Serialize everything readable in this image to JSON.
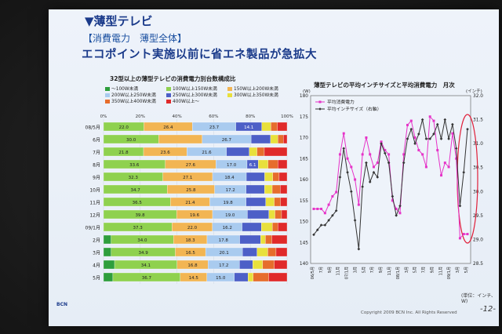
{
  "header": {
    "title": "▼薄型テレビ",
    "subtitle": "【消費電力　薄型全体】",
    "headline": "エコポイント実施以前に省エネ製品が急拡大"
  },
  "footer": {
    "copyright": "Copyright 2009 BCN Inc. All Rights Reserved",
    "page": "-12-",
    "logo": "BCN"
  },
  "chart_data": [
    {
      "type": "bar",
      "stacked": true,
      "orientation": "horizontal",
      "title": "32型以上の薄型テレビの消費電力別台数構成比",
      "x_ticks": [
        "0%",
        "20%",
        "40%",
        "60%",
        "80%",
        "100%"
      ],
      "legend": [
        {
          "label": "～100W未満",
          "color": "#2e9e3c"
        },
        {
          "label": "100W以上150W未満",
          "color": "#8fd14f"
        },
        {
          "label": "150W以上200W未満",
          "color": "#f2b553"
        },
        {
          "label": "200W以上250W未満",
          "color": "#a9cbef"
        },
        {
          "label": "250W以上300W未満",
          "color": "#4d5fc7"
        },
        {
          "label": "300W以上350W未満",
          "color": "#e8e03c"
        },
        {
          "label": "350W以上400W未満",
          "color": "#e66d2c"
        },
        {
          "label": "400W以上～",
          "color": "#e02a2a"
        }
      ],
      "categories": [
        "08/5月",
        "6月",
        "7月",
        "8月",
        "9月",
        "10月",
        "11月",
        "12月",
        "09/1月",
        "2月",
        "3月",
        "4月",
        "5月"
      ],
      "series": [
        {
          "name": "～100W未満",
          "values": [
            0,
            0,
            0,
            0,
            0,
            0,
            0,
            0,
            0,
            4.1,
            4.2,
            6.0,
            5.1
          ],
          "labels": [
            "",
            "",
            "",
            "",
            "",
            "",
            "",
            "",
            "",
            "",
            "",
            "",
            ""
          ]
        },
        {
          "name": "100W以上150W未満",
          "values": [
            22.0,
            30.0,
            21.8,
            33.6,
            32.3,
            34.7,
            36.5,
            39.8,
            37.3,
            34.0,
            34.9,
            34.1,
            36.7
          ],
          "labels": [
            "22.0",
            "30.0",
            "21.8",
            "33.6",
            "32.3",
            "34.7",
            "36.5",
            "39.8",
            "37.3",
            "34.0",
            "34.9",
            "34.1",
            "36.7"
          ]
        },
        {
          "name": "150W以上200W未満",
          "values": [
            26.4,
            23.7,
            23.6,
            27.6,
            27.1,
            25.8,
            21.4,
            19.6,
            22.0,
            18.3,
            16.5,
            16.8,
            14.5
          ],
          "labels": [
            "26.4",
            "",
            "23.6",
            "27.6",
            "27.1",
            "25.8",
            "21.4",
            "19.6",
            "22.0",
            "18.3",
            "16.5",
            "16.8",
            "14.5"
          ]
        },
        {
          "name": "200W以上250W未満",
          "values": [
            23.7,
            26.7,
            21.6,
            17.0,
            18.4,
            17.2,
            19.8,
            19.0,
            16.2,
            17.8,
            20.1,
            17.2,
            15.0
          ],
          "labels": [
            "23.7",
            "26.7",
            "21.6",
            "17.0",
            "18.4",
            "17.2",
            "19.8",
            "19.0",
            "16.2",
            "17.8",
            "20.1",
            "17.2",
            "15.0"
          ]
        },
        {
          "name": "250W以上300W未満",
          "values": [
            14.1,
            10.6,
            12.4,
            6.1,
            10.0,
            10.0,
            10.7,
            11.7,
            10.5,
            11.4,
            7.9,
            7.2,
            7.4
          ],
          "labels": [
            "14.1",
            "",
            "",
            "6.1",
            "",
            "",
            "",
            "",
            "",
            "",
            "",
            "",
            ""
          ]
        },
        {
          "name": "300W以上350W未満",
          "values": [
            5.0,
            4.0,
            4.2,
            5.3,
            4.4,
            4.2,
            4.6,
            3.3,
            6.0,
            2.6,
            5.9,
            5.4,
            2.8
          ],
          "labels": [
            "",
            "",
            "",
            "",
            "",
            "",
            "",
            "",
            "",
            "",
            "",
            "",
            ""
          ]
        },
        {
          "name": "350W以上400W未満",
          "values": [
            3.5,
            3.0,
            4.0,
            5.4,
            3.5,
            4.4,
            3.4,
            3.6,
            3.0,
            3.5,
            4.5,
            6.4,
            8.5
          ],
          "labels": [
            "",
            "",
            "",
            "",
            "",
            "",
            "",
            "",
            "",
            "",
            "",
            "",
            ""
          ]
        },
        {
          "name": "400W以上～",
          "values": [
            5.3,
            2.0,
            12.4,
            5.0,
            4.3,
            3.7,
            3.6,
            3.0,
            5.0,
            8.3,
            6.0,
            6.9,
            10.0
          ],
          "labels": [
            "",
            "",
            "",
            "",
            "",
            "",
            "",
            "",
            "",
            "",
            "",
            "",
            ""
          ]
        }
      ]
    },
    {
      "type": "line",
      "title": "薄型テレビの平均インチサイズと平均消費電力　月次",
      "ylabel_left": "(W)",
      "ylabel_right": "(インチ)",
      "unit_note": "(単位：インチ、W)",
      "y_left_ticks": [
        140,
        145,
        150,
        155,
        160,
        165,
        170,
        175,
        180
      ],
      "y_right_ticks": [
        28.5,
        29.0,
        29.5,
        30.0,
        30.5,
        31.0,
        31.5,
        32.0
      ],
      "ylim_left": [
        140,
        180
      ],
      "ylim_right": [
        28.5,
        32.0
      ],
      "x_ticks": [
        "06/5月",
        "7月",
        "9月",
        "11月",
        "07/1月",
        "3月",
        "5月",
        "7月",
        "9月",
        "11月",
        "08/1月",
        "3月",
        "5月",
        "7月",
        "9月",
        "11月",
        "09/1月",
        "3月",
        "5月"
      ],
      "series": [
        {
          "name": "平均消費電力",
          "axis": "left",
          "color": "#e633c8",
          "marker": "square",
          "values": [
            153,
            153,
            153,
            152,
            154,
            156,
            157,
            166,
            171,
            165,
            163,
            160,
            154,
            166,
            170,
            166,
            163,
            164,
            169,
            167,
            166,
            155,
            153,
            152,
            166,
            173,
            174,
            170,
            167,
            166,
            163,
            175,
            174,
            167,
            161,
            164,
            163,
            171,
            165,
            146,
            147,
            147
          ]
        },
        {
          "name": "平均インチサイズ（右軸）",
          "axis": "right",
          "color": "#333333",
          "marker": "diamond",
          "values": [
            29.1,
            29.2,
            29.3,
            29.3,
            29.4,
            29.5,
            29.6,
            30.3,
            30.9,
            30.4,
            30.0,
            29.4,
            28.8,
            30.1,
            30.6,
            30.2,
            30.4,
            30.3,
            31.0,
            30.8,
            30.6,
            29.9,
            29.5,
            29.7,
            30.6,
            31.1,
            31.3,
            31.0,
            31.2,
            31.5,
            31.1,
            31.1,
            31.2,
            31.4,
            31.1,
            31.5,
            31.1,
            31.4,
            30.9,
            29.7,
            30.4,
            31.3
          ]
        }
      ]
    }
  ]
}
